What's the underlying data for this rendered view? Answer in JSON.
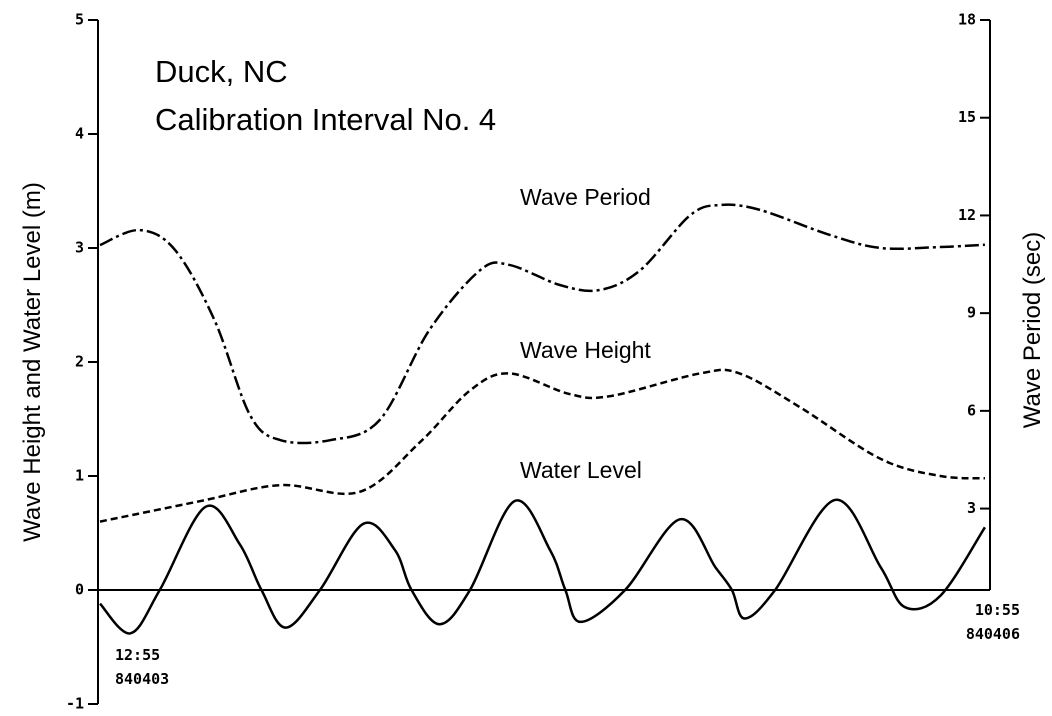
{
  "chart_data": {
    "type": "line",
    "title": "Duck, NC",
    "subtitle": "Calibration Interval No. 4",
    "ylabel": "Wave Height and Water Level  (m)",
    "y2label": "Wave Period  (sec)",
    "xlim": [
      0,
      70
    ],
    "xticks": [
      {
        "value": 0,
        "label": "12:55 840403"
      },
      {
        "value": 70,
        "label": "10:55 840406"
      }
    ],
    "ylim": [
      -1,
      5
    ],
    "yticks": [
      -1,
      0,
      1,
      2,
      3,
      4,
      5
    ],
    "y2lim": [
      -3,
      18
    ],
    "y2ticks": [
      3,
      6,
      9,
      12,
      15,
      18
    ],
    "series": [
      {
        "name": "Wave Period",
        "color": "#000000",
        "dash": "dashdot",
        "axis": "y2",
        "x": [
          0,
          3.1,
          5.9,
          9.0,
          11.8,
          14.2,
          18.1,
          22.0,
          25.9,
          29.9,
          32.2,
          36.2,
          39.3,
          42.5,
          46.4,
          48.8,
          51.9,
          57.4,
          61.4,
          66.1,
          69.6
        ],
        "values": [
          11.09,
          11.55,
          10.94,
          8.79,
          5.87,
          5.1,
          5.1,
          5.72,
          8.48,
          10.32,
          10.48,
          9.86,
          9.71,
          10.32,
          12.0,
          12.32,
          12.17,
          11.4,
          11.0,
          11.03,
          11.1
        ]
      },
      {
        "name": "Wave Height",
        "color": "#000000",
        "dash": "dashed",
        "x": [
          0,
          7.9,
          14.2,
          20.4,
          25.2,
          29.1,
          32.2,
          36.9,
          40.1,
          47.2,
          50.3,
          55.1,
          61.4,
          66.1,
          69.6
        ],
        "values": [
          0.6,
          0.78,
          0.92,
          0.86,
          1.3,
          1.75,
          1.9,
          1.72,
          1.7,
          1.9,
          1.9,
          1.6,
          1.15,
          1.0,
          0.98
        ]
      },
      {
        "name": "Water Level",
        "color": "#000000",
        "dash": "solid",
        "x": [
          0,
          2.4,
          4.7,
          8.3,
          11.0,
          12.7,
          14.6,
          17.3,
          20.7,
          23.2,
          24.5,
          26.7,
          29.1,
          32.6,
          35.4,
          36.6,
          37.8,
          41.3,
          45.6,
          48.4,
          49.7,
          50.7,
          53.1,
          57.8,
          61.4,
          63.3,
          66.1,
          69.6
        ],
        "values": [
          -0.12,
          -0.38,
          0.0,
          0.73,
          0.4,
          0.0,
          -0.33,
          0.0,
          0.58,
          0.35,
          0.0,
          -0.3,
          0.0,
          0.78,
          0.35,
          0.0,
          -0.28,
          0.0,
          0.62,
          0.2,
          0.0,
          -0.25,
          0.0,
          0.79,
          0.2,
          -0.15,
          -0.05,
          0.55
        ]
      }
    ]
  }
}
